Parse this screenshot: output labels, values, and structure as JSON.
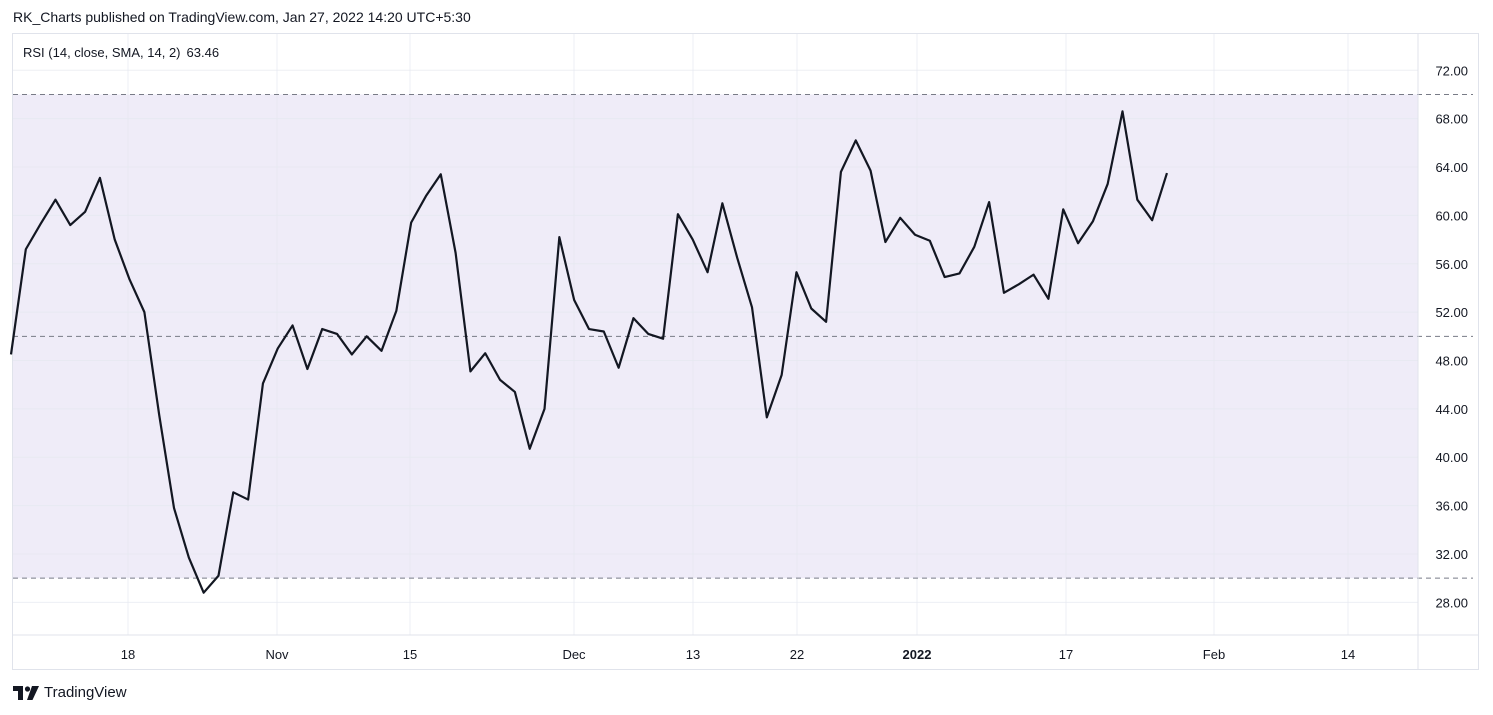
{
  "header": {
    "text": "RK_Charts published on TradingView.com, Jan 27, 2022 14:20 UTC+5:30"
  },
  "indicator": {
    "name": "RSI (14, close, SMA, 14, 2)",
    "value": "63.46"
  },
  "footer": {
    "brand": "TradingView",
    "logo_icon": "tradingview-logo-icon"
  },
  "colors": {
    "line": "#131722",
    "band_fill": "#efecf8",
    "band_border": "#787b86",
    "grid": "#f0f3fa",
    "axis_text": "#131722"
  },
  "chart_data": {
    "type": "line",
    "title": "",
    "xlabel": "",
    "ylabel": "",
    "ylim": [
      25.3,
      75.0
    ],
    "y_ticks": [
      "28.00",
      "32.00",
      "36.00",
      "40.00",
      "44.00",
      "48.00",
      "52.00",
      "56.00",
      "60.00",
      "64.00",
      "68.00",
      "72.00"
    ],
    "x_ticks": [
      {
        "label": "18",
        "bold": false
      },
      {
        "label": "Nov",
        "bold": false
      },
      {
        "label": "15",
        "bold": false
      },
      {
        "label": "Dec",
        "bold": false
      },
      {
        "label": "13",
        "bold": false
      },
      {
        "label": "22",
        "bold": false
      },
      {
        "label": "2022",
        "bold": true
      },
      {
        "label": "17",
        "bold": false
      },
      {
        "label": "Feb",
        "bold": false
      },
      {
        "label": "14",
        "bold": false
      }
    ],
    "levels": {
      "upper": 70,
      "middle": 50,
      "lower": 30
    },
    "grid": true,
    "series": [
      {
        "values": [
          48.5,
          57.2,
          59.3,
          61.3,
          59.2,
          60.3,
          63.1,
          58.0,
          54.7,
          52.0,
          43.5,
          35.8,
          31.7,
          28.8,
          30.2,
          37.1,
          36.5,
          46.1,
          49.0,
          50.9,
          47.3,
          50.6,
          50.2,
          48.5,
          50.0,
          48.8,
          52.1,
          59.4,
          61.6,
          63.4,
          56.9,
          47.1,
          48.6,
          46.4,
          45.4,
          40.7,
          44.0,
          58.2,
          53.0,
          50.6,
          50.4,
          47.4,
          51.5,
          50.2,
          49.8,
          60.1,
          58.0,
          55.3,
          61.0,
          56.5,
          52.4,
          43.3,
          46.8,
          55.3,
          52.3,
          51.2,
          63.6,
          66.2,
          63.7,
          57.8,
          59.8,
          58.4,
          57.9,
          54.9,
          55.2,
          57.4,
          61.1,
          53.6,
          54.3,
          55.1,
          53.1,
          60.5,
          57.7,
          59.5,
          62.6,
          68.6,
          61.3,
          59.6,
          63.5
        ]
      }
    ]
  }
}
